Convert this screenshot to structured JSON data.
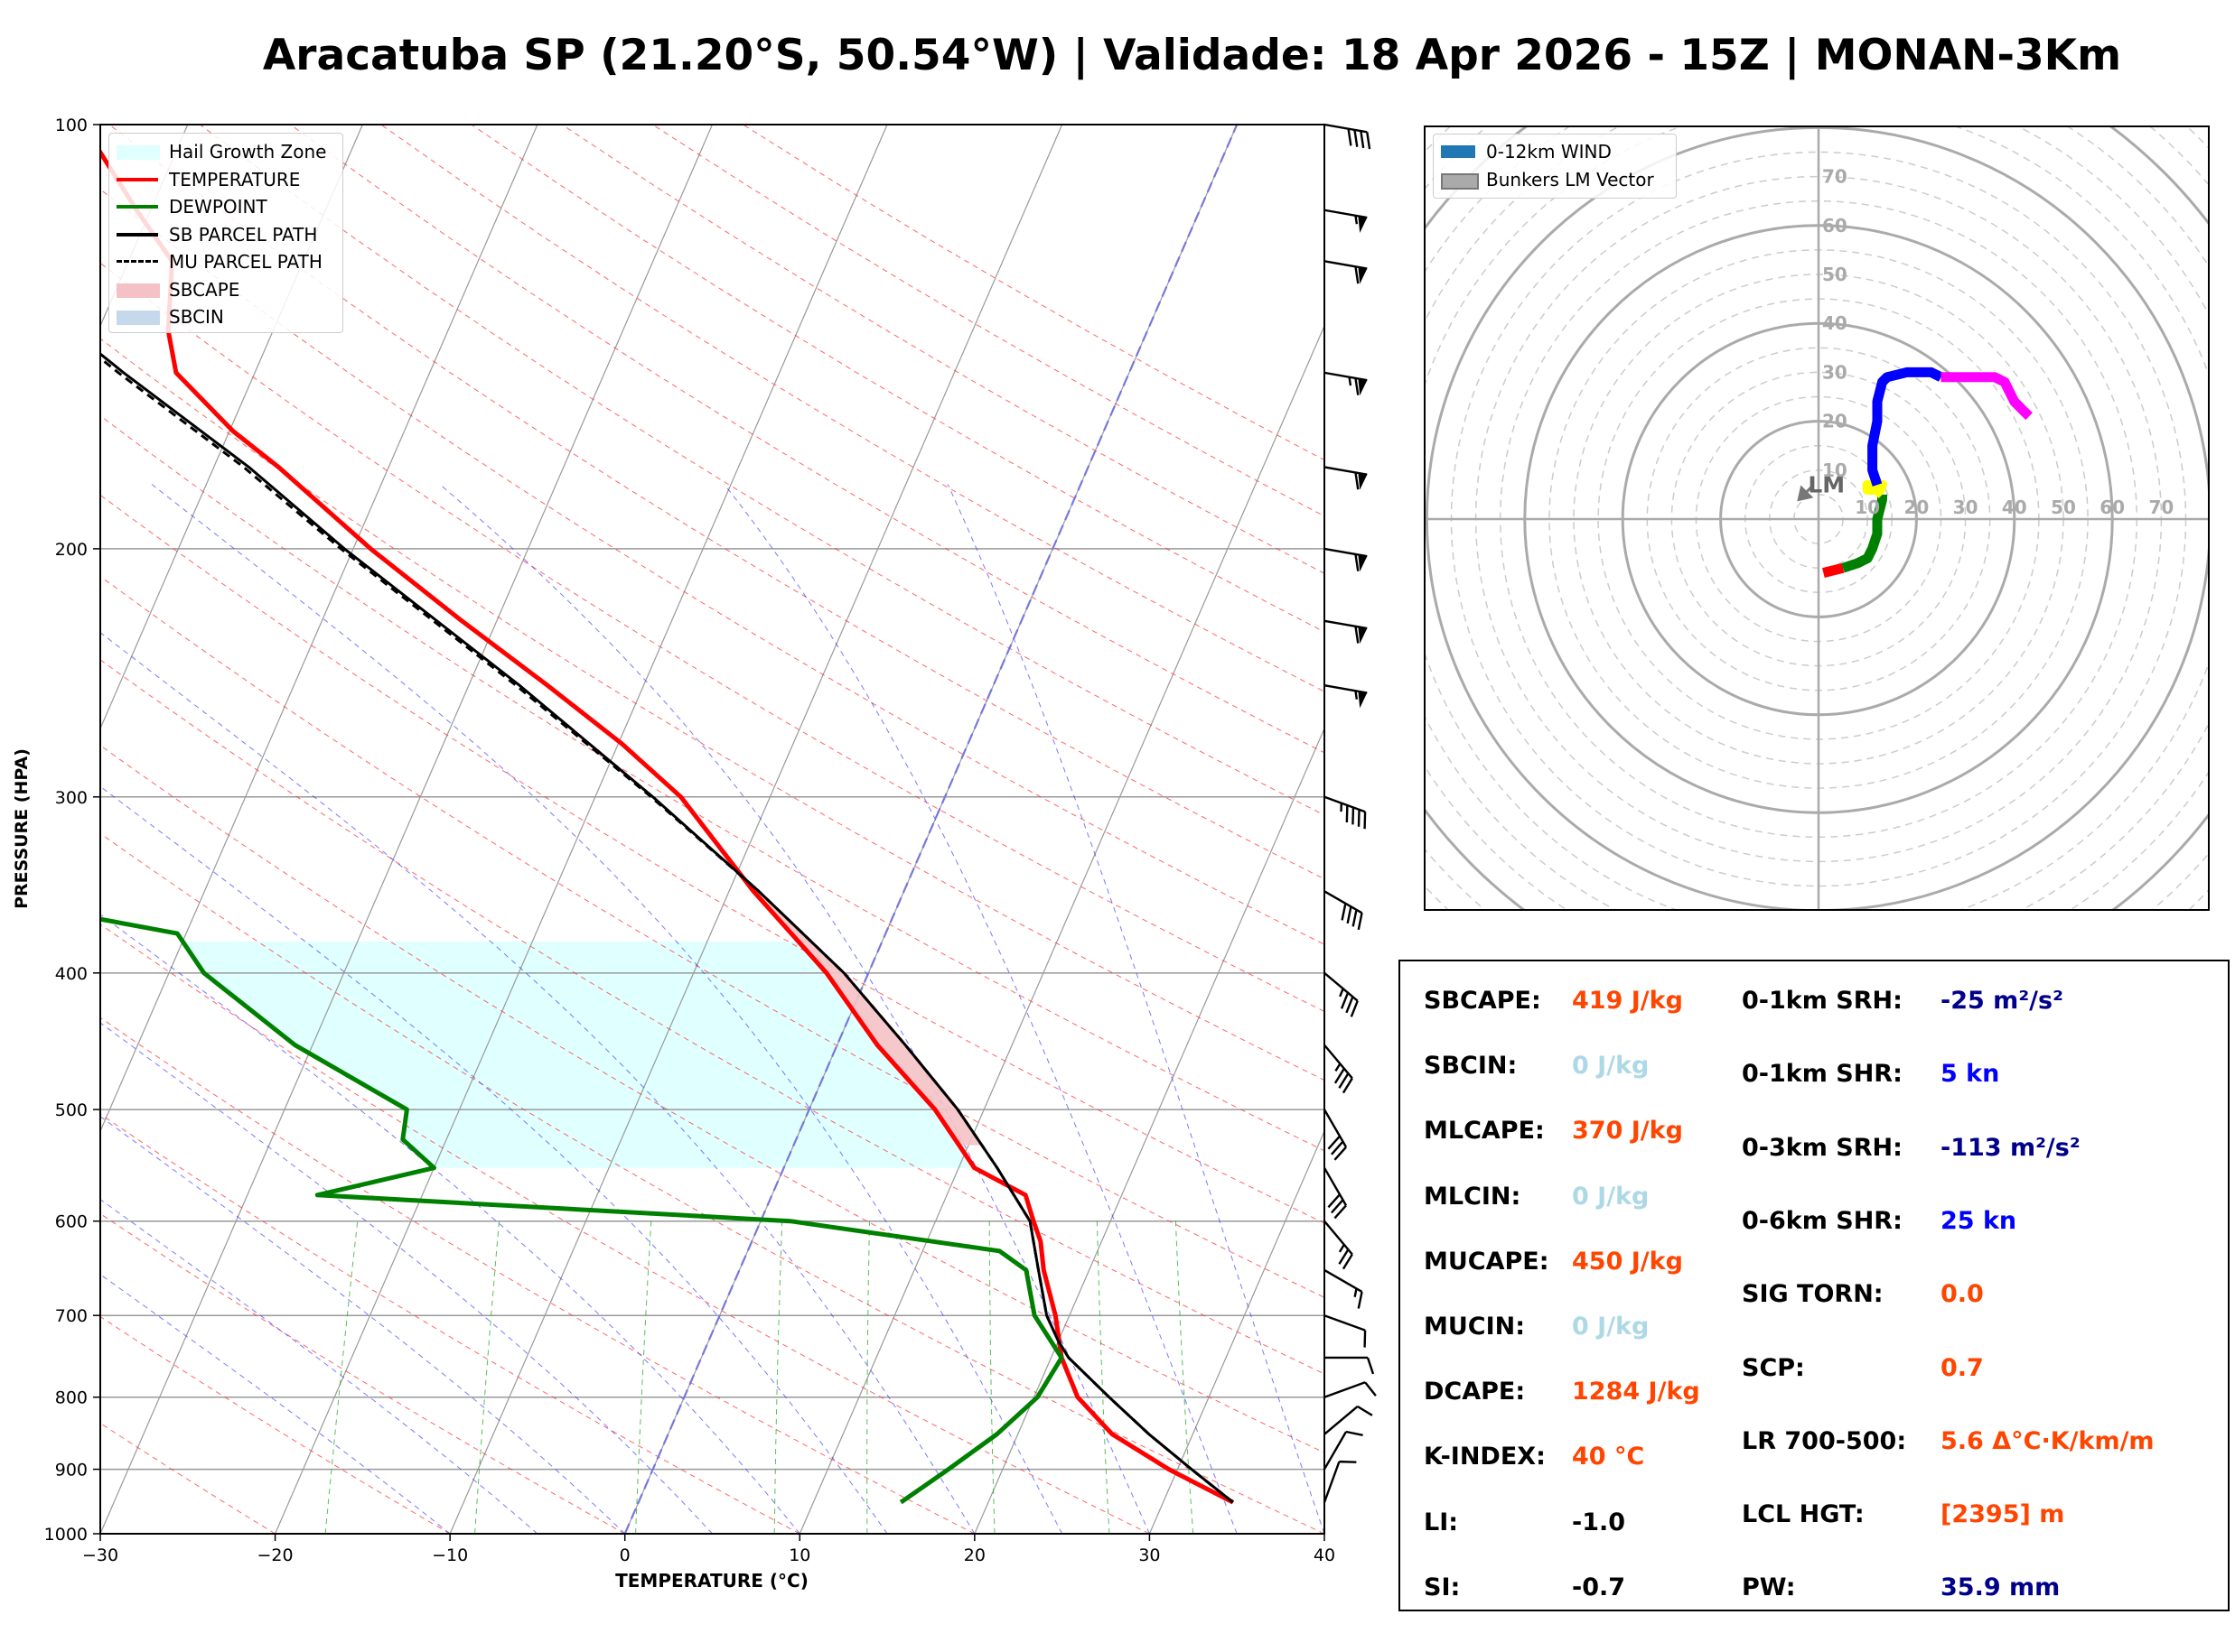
{
  "title": "Aracatuba SP (21.20°S, 50.54°W) | Validade: 18 Apr 2026 - 15Z | MONAN-3Km",
  "skewt": {
    "ylabel": "PRESSURE (HPA)",
    "xlabel": "TEMPERATURE (°C)",
    "xticks": [
      "−30",
      "−20",
      "−10",
      "0",
      "10",
      "20",
      "30",
      "40"
    ],
    "xtick_values": [
      -30,
      -20,
      -10,
      0,
      10,
      20,
      30,
      40
    ],
    "yticks": [
      "100",
      "200",
      "300",
      "400",
      "500",
      "600",
      "700",
      "800",
      "900",
      "1000"
    ],
    "ytick_values": [
      100,
      200,
      300,
      400,
      500,
      600,
      700,
      800,
      900,
      1000
    ],
    "legend": [
      {
        "label": "Hail Growth Zone",
        "color": "#e0ffff",
        "kind": "fill"
      },
      {
        "label": "TEMPERATURE",
        "color": "#ff0000",
        "kind": "line"
      },
      {
        "label": "DEWPOINT",
        "color": "#008000",
        "kind": "line"
      },
      {
        "label": "SB PARCEL PATH",
        "color": "#000000",
        "kind": "line"
      },
      {
        "label": "MU PARCEL PATH",
        "color": "#000000",
        "kind": "dashed"
      },
      {
        "label": "SBCAPE",
        "color": "#f4c2c6",
        "kind": "fill"
      },
      {
        "label": "SBCIN",
        "color": "#c6d9ec",
        "kind": "fill"
      }
    ]
  },
  "chart_data": [
    {
      "type": "line",
      "title": "Skew-T log-P",
      "xlabel": "TEMPERATURE (°C)",
      "ylabel": "PRESSURE (HPA)",
      "xlim": [
        -30,
        40
      ],
      "ylim": [
        1000,
        100
      ],
      "series": [
        {
          "name": "TEMPERATURE",
          "color": "#ff0000",
          "points": [
            [
              950,
              34
            ],
            [
              900,
              29.5
            ],
            [
              850,
              25.4
            ],
            [
              800,
              22.5
            ],
            [
              750,
              20.6
            ],
            [
              700,
              19.2
            ],
            [
              650,
              17.4
            ],
            [
              620,
              16.5
            ],
            [
              600,
              15.6
            ],
            [
              575,
              14.5
            ],
            [
              550,
              10.9
            ],
            [
              500,
              7.2
            ],
            [
              450,
              2.3
            ],
            [
              400,
              -2.4
            ],
            [
              350,
              -8.6
            ],
            [
              300,
              -15.1
            ],
            [
              275,
              -19.8
            ],
            [
              250,
              -25.5
            ],
            [
              225,
              -32.0
            ],
            [
              200,
              -39.0
            ],
            [
              175,
              -46.3
            ],
            [
              165,
              -49.8
            ],
            [
              150,
              -54.5
            ],
            [
              140,
              -56.0
            ],
            [
              125,
              -57.5
            ],
            [
              115,
              -60.8
            ],
            [
              100,
              -66
            ]
          ]
        },
        {
          "name": "DEWPOINT",
          "color": "#008000",
          "points": [
            [
              950,
              15
            ],
            [
              900,
              16.9
            ],
            [
              850,
              18.8
            ],
            [
              800,
              20.2
            ],
            [
              750,
              20.6
            ],
            [
              700,
              18.0
            ],
            [
              650,
              16.4
            ],
            [
              630,
              14.4
            ],
            [
              600,
              1.7
            ],
            [
              575,
              -26.0
            ],
            [
              550,
              -20.0
            ],
            [
              525,
              -22.5
            ],
            [
              500,
              -23.0
            ],
            [
              450,
              -31.0
            ],
            [
              400,
              -38.0
            ],
            [
              375,
              -40.5
            ],
            [
              350,
              -54.5
            ],
            [
              325,
              -52.0
            ],
            [
              300,
              -59.0
            ],
            [
              275,
              -67.0
            ],
            [
              250,
              -70.5
            ],
            [
              225,
              -77.5
            ],
            [
              200,
              -78.5
            ],
            [
              175,
              -80.3
            ],
            [
              160,
              -81.0
            ],
            [
              150,
              -83.5
            ],
            [
              130,
              -88.0
            ],
            [
              115,
              -87.0
            ],
            [
              100,
              -87.0
            ]
          ]
        },
        {
          "name": "SB PARCEL PATH",
          "color": "#000000",
          "points": [
            [
              950,
              34
            ],
            [
              900,
              30.8
            ],
            [
              850,
              27.5
            ],
            [
              800,
              24.3
            ],
            [
              750,
              21.0
            ],
            [
              730,
              20.0
            ],
            [
              700,
              18.7
            ],
            [
              650,
              17.1
            ],
            [
              600,
              15.4
            ],
            [
              550,
              12.2
            ],
            [
              500,
              8.5
            ],
            [
              450,
              3.9
            ],
            [
              400,
              -1.4
            ],
            [
              350,
              -8.3
            ],
            [
              300,
              -16.7
            ],
            [
              250,
              -27.1
            ],
            [
              200,
              -40.5
            ],
            [
              175,
              -48.0
            ],
            [
              150,
              -57.5
            ],
            [
              125,
              -68.2
            ],
            [
              100,
              -82.0
            ]
          ]
        },
        {
          "name": "MU PARCEL PATH",
          "color": "#000000",
          "dashed": true,
          "points": [
            [
              950,
              34
            ],
            [
              900,
              30.8
            ],
            [
              850,
              27.5
            ],
            [
              800,
              24.3
            ],
            [
              750,
              21.0
            ],
            [
              730,
              20.0
            ],
            [
              700,
              18.7
            ],
            [
              650,
              17.1
            ],
            [
              600,
              15.4
            ],
            [
              550,
              12.2
            ],
            [
              500,
              8.5
            ],
            [
              450,
              3.9
            ],
            [
              400,
              -1.4
            ],
            [
              350,
              -8.3
            ],
            [
              300,
              -16.8
            ],
            [
              250,
              -27.3
            ],
            [
              200,
              -40.7
            ],
            [
              175,
              -48.3
            ],
            [
              150,
              -57.8
            ],
            [
              125,
              -68.5
            ],
            [
              100,
              -82.3
            ]
          ]
        }
      ],
      "wind_barbs": [
        {
          "p": 950,
          "speed_kn": 10,
          "dir_deg": 200
        },
        {
          "p": 900,
          "speed_kn": 10,
          "dir_deg": 210
        },
        {
          "p": 850,
          "speed_kn": 10,
          "dir_deg": 230
        },
        {
          "p": 800,
          "speed_kn": 10,
          "dir_deg": 250
        },
        {
          "p": 750,
          "speed_kn": 10,
          "dir_deg": 270
        },
        {
          "p": 700,
          "speed_kn": 10,
          "dir_deg": 290
        },
        {
          "p": 650,
          "speed_kn": 15,
          "dir_deg": 300
        },
        {
          "p": 600,
          "speed_kn": 25,
          "dir_deg": 320
        },
        {
          "p": 550,
          "speed_kn": 30,
          "dir_deg": 330
        },
        {
          "p": 500,
          "speed_kn": 30,
          "dir_deg": 330
        },
        {
          "p": 450,
          "speed_kn": 35,
          "dir_deg": 320
        },
        {
          "p": 400,
          "speed_kn": 35,
          "dir_deg": 310
        },
        {
          "p": 350,
          "speed_kn": 40,
          "dir_deg": 300
        },
        {
          "p": 300,
          "speed_kn": 45,
          "dir_deg": 290
        },
        {
          "p": 250,
          "speed_kn": 55,
          "dir_deg": 280
        },
        {
          "p": 225,
          "speed_kn": 60,
          "dir_deg": 280
        },
        {
          "p": 200,
          "speed_kn": 60,
          "dir_deg": 280
        },
        {
          "p": 175,
          "speed_kn": 60,
          "dir_deg": 280
        },
        {
          "p": 150,
          "speed_kn": 65,
          "dir_deg": 280
        },
        {
          "p": 125,
          "speed_kn": 60,
          "dir_deg": 280
        },
        {
          "p": 115,
          "speed_kn": 55,
          "dir_deg": 280
        },
        {
          "p": 100,
          "speed_kn": 40,
          "dir_deg": 280
        }
      ],
      "hail_growth_zone": {
        "p_bottom": 550,
        "p_top": 380
      },
      "lcl_p": 730
    },
    {
      "type": "line",
      "title": "Hodograph",
      "xlim": [
        -80,
        80
      ],
      "ylim": [
        -80,
        80
      ],
      "ring_labels": [
        "10",
        "20",
        "30",
        "40",
        "50",
        "60",
        "70"
      ],
      "ring_values": [
        10,
        20,
        30,
        40,
        50,
        60,
        70
      ],
      "series": [
        {
          "name": "0-1km",
          "color": "#ff0000",
          "points": [
            [
              1,
              -11
            ],
            [
              3,
              -10.5
            ],
            [
              5,
              -10
            ]
          ]
        },
        {
          "name": "1-3km",
          "color": "#008000",
          "points": [
            [
              5,
              -10
            ],
            [
              8,
              -9
            ],
            [
              10,
              -8
            ],
            [
              11,
              -6
            ],
            [
              12,
              -3
            ],
            [
              12,
              0
            ],
            [
              13,
              4
            ],
            [
              13,
              5
            ]
          ]
        },
        {
          "name": "3-6km",
          "color": "#ffff00",
          "points": [
            [
              13,
              5
            ],
            [
              12,
              6
            ],
            [
              10,
              7
            ],
            [
              10,
              6
            ],
            [
              12,
              6
            ],
            [
              13,
              7
            ],
            [
              12,
              7
            ]
          ]
        },
        {
          "name": "6-9km",
          "color": "#0000ff",
          "points": [
            [
              12,
              7
            ],
            [
              11,
              10
            ],
            [
              11,
              15
            ],
            [
              12,
              20
            ],
            [
              12,
              24
            ],
            [
              13,
              28
            ],
            [
              14,
              29
            ],
            [
              18,
              30
            ],
            [
              23,
              30
            ],
            [
              25,
              29
            ]
          ]
        },
        {
          "name": "9-12km",
          "color": "#ff00ff",
          "points": [
            [
              25,
              29
            ],
            [
              28,
              29
            ],
            [
              33,
              29
            ],
            [
              36,
              29
            ],
            [
              38,
              28
            ],
            [
              39,
              26
            ],
            [
              40,
              24
            ],
            [
              42,
              22
            ],
            [
              43,
              21
            ]
          ]
        }
      ],
      "bunkers_lm": {
        "u": -4,
        "v": 4,
        "label": "LM"
      },
      "legend": [
        {
          "label": "0-12km WIND",
          "color": "#1f77b4"
        },
        {
          "label": "Bunkers LM Vector",
          "color": "#aaaaaa"
        }
      ]
    }
  ],
  "indices": {
    "left": [
      {
        "label": "SBCAPE:",
        "value": "419 J/kg",
        "color": "#ff4500"
      },
      {
        "label": "SBCIN:",
        "value": "0 J/kg",
        "color": "#add8e6"
      },
      {
        "label": "MLCAPE:",
        "value": "370 J/kg",
        "color": "#ff4500"
      },
      {
        "label": "MLCIN:",
        "value": "0 J/kg",
        "color": "#add8e6"
      },
      {
        "label": "MUCAPE:",
        "value": "450 J/kg",
        "color": "#ff4500"
      },
      {
        "label": "MUCIN:",
        "value": "0 J/kg",
        "color": "#add8e6"
      },
      {
        "label": "DCAPE:",
        "value": "1284 J/kg",
        "color": "#ff4500"
      },
      {
        "label": "K-INDEX:",
        "value": "40 °C",
        "color": "#ff4500"
      },
      {
        "label": "LI:",
        "value": "-1.0",
        "color": "#000000"
      },
      {
        "label": "SI:",
        "value": "-0.7",
        "color": "#000000"
      }
    ],
    "right": [
      {
        "label": "0-1km SRH:",
        "value": "-25 m²/s²",
        "color": "#00008b"
      },
      {
        "label": "0-1km SHR:",
        "value": "5 kn",
        "color": "#0000ff"
      },
      {
        "label": "0-3km SRH:",
        "value": "-113 m²/s²",
        "color": "#00008b"
      },
      {
        "label": "0-6km SHR:",
        "value": "25 kn",
        "color": "#0000ff"
      },
      {
        "label": "SIG TORN:",
        "value": "0.0",
        "color": "#ff4500"
      },
      {
        "label": "SCP:",
        "value": "0.7",
        "color": "#ff4500"
      },
      {
        "label": "LR 700-500:",
        "value": "5.6 Δ°C·K/km/m",
        "color": "#ff4500"
      },
      {
        "label": "LCL HGT:",
        "value": "[2395] m",
        "color": "#ff4500"
      },
      {
        "label": "PW:",
        "value": "35.9 mm",
        "color": "#00008b"
      }
    ]
  }
}
